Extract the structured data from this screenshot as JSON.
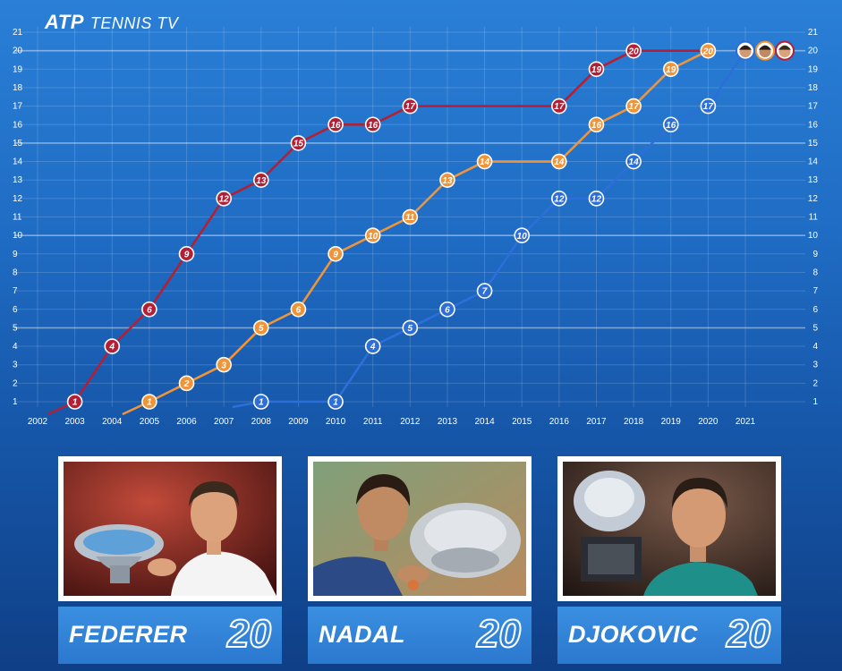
{
  "logo": {
    "brand": "ATP",
    "product": "TENNIS TV"
  },
  "colors": {
    "federer": "#b32035",
    "nadal": "#f0943a",
    "djokovic": "#2d6ed8"
  },
  "chart_data": {
    "type": "line",
    "title": "",
    "xlabel": "",
    "ylabel": "",
    "xlim": [
      2002,
      2021
    ],
    "ylim": [
      1,
      21
    ],
    "grid": true,
    "x_ticks": [
      "2002",
      "2003",
      "2004",
      "2005",
      "2006",
      "2007",
      "2008",
      "2009",
      "2010",
      "2011",
      "2012",
      "2013",
      "2014",
      "2015",
      "2016",
      "2017",
      "2018",
      "2019",
      "2020",
      "2021"
    ],
    "y_ticks": [
      1,
      2,
      3,
      4,
      5,
      6,
      7,
      8,
      9,
      10,
      11,
      12,
      13,
      14,
      15,
      16,
      17,
      18,
      19,
      20,
      21
    ],
    "series": [
      {
        "name": "FEDERER",
        "color": "#b32035",
        "x": [
          2003,
          2004,
          2005,
          2006,
          2007,
          2008,
          2009,
          2010,
          2011,
          2012,
          2016,
          2017,
          2018,
          2020
        ],
        "y": [
          1,
          4,
          6,
          9,
          12,
          13,
          15,
          16,
          16,
          17,
          17,
          19,
          20,
          20
        ],
        "labeled": [
          true,
          true,
          true,
          true,
          true,
          true,
          true,
          true,
          true,
          true,
          true,
          true,
          true,
          false
        ]
      },
      {
        "name": "NADAL",
        "color": "#f0943a",
        "x": [
          2005,
          2006,
          2007,
          2008,
          2009,
          2010,
          2011,
          2012,
          2013,
          2014,
          2016,
          2017,
          2018,
          2019,
          2020
        ],
        "y": [
          1,
          2,
          3,
          5,
          6,
          9,
          10,
          11,
          13,
          14,
          14,
          16,
          17,
          19,
          20
        ],
        "labeled": [
          true,
          true,
          true,
          true,
          true,
          true,
          true,
          true,
          true,
          true,
          true,
          true,
          true,
          true,
          true
        ]
      },
      {
        "name": "DJOKOVIC",
        "color": "#2d6ed8",
        "x": [
          2008,
          2010,
          2011,
          2012,
          2013,
          2014,
          2015,
          2016,
          2017,
          2018,
          2019,
          2020,
          2021
        ],
        "y": [
          1,
          1,
          4,
          5,
          6,
          7,
          10,
          12,
          12,
          14,
          16,
          17,
          20
        ],
        "labeled": [
          true,
          true,
          true,
          true,
          true,
          true,
          true,
          true,
          true,
          true,
          true,
          true,
          false
        ]
      }
    ]
  },
  "cards": [
    {
      "name": "FEDERER",
      "count": "20"
    },
    {
      "name": "NADAL",
      "count": "20"
    },
    {
      "name": "DJOKOVIC",
      "count": "20"
    }
  ]
}
